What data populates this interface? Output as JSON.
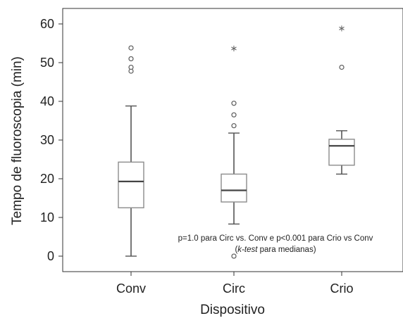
{
  "chart_data": {
    "type": "boxplot",
    "xlabel": "Dispositivo",
    "ylabel": "Tempo de fluoroscopia (min)",
    "ylim": [
      -4,
      64
    ],
    "yticks": [
      0,
      10,
      20,
      30,
      40,
      50,
      60
    ],
    "grid": false,
    "categories": [
      "Conv",
      "Circ",
      "Crio"
    ],
    "boxes": [
      {
        "category": "Conv",
        "whisker_low": 0,
        "q1": 12.5,
        "median": 19.3,
        "q3": 24.3,
        "whisker_high": 38.8,
        "outliers": [
          47.8,
          48.8,
          51.0,
          53.8
        ],
        "extremes": []
      },
      {
        "category": "Circ",
        "whisker_low": 8.3,
        "q1": 14.0,
        "median": 17.0,
        "q3": 21.2,
        "whisker_high": 31.8,
        "outliers": [
          0,
          33.7,
          36.5,
          39.5
        ],
        "extremes": [
          53.8
        ]
      },
      {
        "category": "Crio",
        "whisker_low": 21.2,
        "q1": 23.5,
        "median": 28.5,
        "q3": 30.2,
        "whisker_high": 32.4,
        "outliers": [
          48.8
        ],
        "extremes": [
          59.0
        ]
      }
    ],
    "annotation": {
      "line1": "p=1.0 para Circ vs. Conv e p<0.001 para Crio vs Conv",
      "line2_open": "(",
      "line2_italic": "k-test",
      "line2_rest": " para medianas)"
    },
    "colors": {
      "box_stroke": "#8c8c8c",
      "median": "#444444",
      "axis": "#333333",
      "marker": "#666666"
    }
  }
}
